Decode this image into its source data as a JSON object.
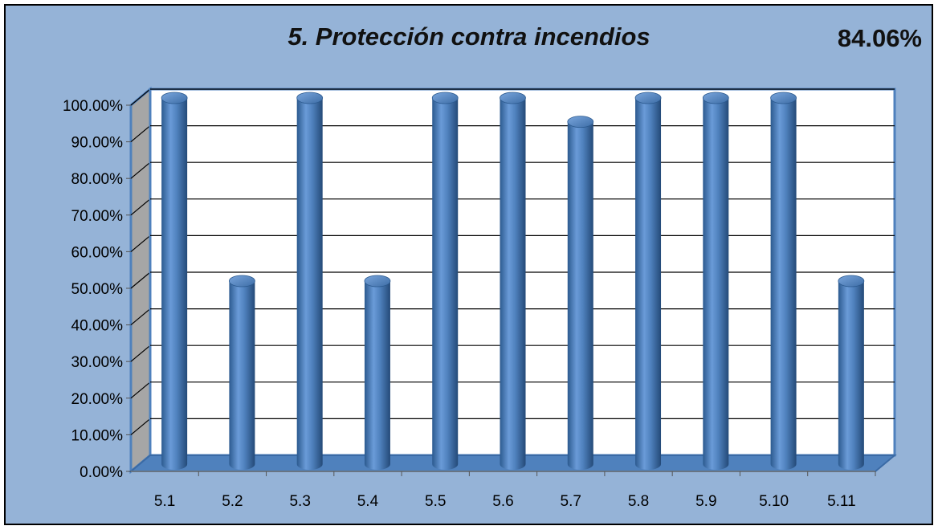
{
  "header": {
    "title": "5. Protección contra incendios",
    "overall_score": "84.06%"
  },
  "colors": {
    "background": "#95b3d7",
    "plot_area": "#ffffff",
    "bar_fill": "#4f81bd",
    "bar_dark": "#2f5d92",
    "floor": "#4f81bd",
    "side_wall": "#a6a6a6"
  },
  "chart_data": {
    "type": "bar",
    "style": "3d-cylinder",
    "title": "5. Protección contra incendios",
    "xlabel": "",
    "ylabel": "",
    "categories": [
      "5.1",
      "5.2",
      "5.3",
      "5.4",
      "5.5",
      "5.6",
      "5.7",
      "5.8",
      "5.9",
      "5.10",
      "5.11"
    ],
    "values": [
      1.0,
      0.5,
      1.0,
      0.5,
      1.0,
      1.0,
      0.935,
      1.0,
      1.0,
      1.0,
      0.5
    ],
    "ylim": [
      0,
      1
    ],
    "y_ticks": [
      "0.00%",
      "10.00%",
      "20.00%",
      "30.00%",
      "40.00%",
      "50.00%",
      "60.00%",
      "70.00%",
      "80.00%",
      "90.00%",
      "100.00%"
    ],
    "grid": true,
    "legend": "none"
  }
}
